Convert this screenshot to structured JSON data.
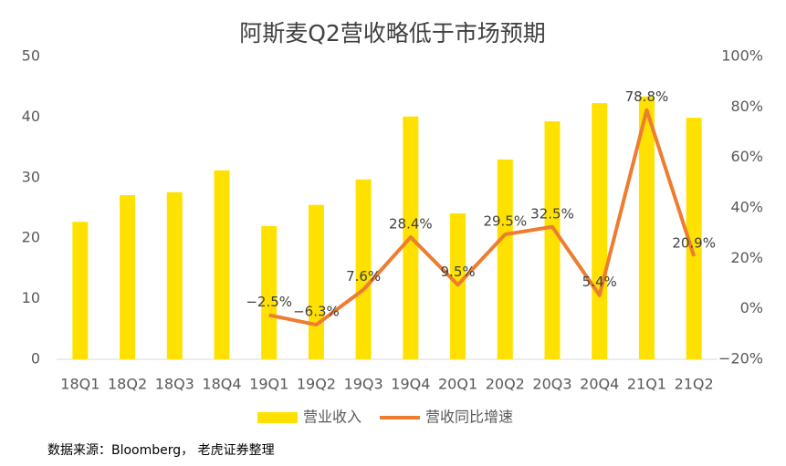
{
  "chart_data": {
    "type": "bar_line",
    "title": "阿斯麦Q2营收略低于市场预期",
    "categories": [
      "18Q1",
      "18Q2",
      "18Q3",
      "18Q4",
      "19Q1",
      "19Q2",
      "19Q3",
      "19Q4",
      "20Q1",
      "20Q2",
      "20Q3",
      "20Q4",
      "21Q1",
      "21Q2"
    ],
    "series": [
      {
        "name": "营业收入",
        "type": "bar",
        "color": "#FFE100",
        "values": [
          22.7,
          27.1,
          27.6,
          31.2,
          22.0,
          25.5,
          29.7,
          40.1,
          24.1,
          33.0,
          39.3,
          42.3,
          43.4,
          39.9
        ]
      },
      {
        "name": "营收同比增速",
        "type": "line",
        "axis": "y2",
        "color": "#ED7D31",
        "values": [
          null,
          null,
          null,
          null,
          -2.5,
          -6.3,
          7.6,
          28.4,
          9.5,
          29.5,
          32.5,
          5.4,
          78.8,
          20.9
        ],
        "value_labels": [
          null,
          null,
          null,
          null,
          "−2.5%",
          "−6.3%",
          "7.6%",
          "28.4%",
          "9.5%",
          "29.5%",
          "32.5%",
          "5.4%",
          "78.8%",
          "20.9%"
        ]
      }
    ],
    "ylim": [
      0,
      50
    ],
    "yticks": [
      0,
      10,
      20,
      30,
      40,
      50
    ],
    "y2lim": [
      -20,
      100
    ],
    "y2ticks": [
      {
        "value": -20,
        "label": "−20%"
      },
      {
        "value": 0,
        "label": "0%"
      },
      {
        "value": 20,
        "label": "20%"
      },
      {
        "value": 40,
        "label": "40%"
      },
      {
        "value": 60,
        "label": "60%"
      },
      {
        "value": 80,
        "label": "80%"
      },
      {
        "value": 100,
        "label": "100%"
      }
    ],
    "legend": "bottom",
    "source": "数据来源：Bloomberg， 老虎证券整理"
  }
}
